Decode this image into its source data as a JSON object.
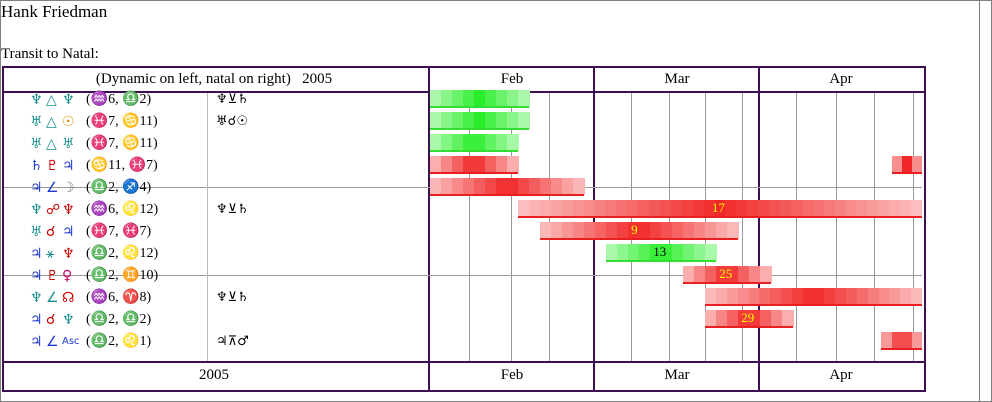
{
  "title": "Hank Friedman",
  "subtitle": "Transit to Natal:",
  "header": {
    "left_caption": "(Dynamic on left, natal on right)",
    "year": "2005",
    "months": [
      "Feb",
      "Mar",
      "Apr"
    ]
  },
  "footer": {
    "year": "2005",
    "months": [
      "Feb",
      "Mar",
      "Apr"
    ]
  },
  "colors": {
    "frame": "#3c1053",
    "green_bar": "#33dd33",
    "red_bar": "#e82020",
    "label_yellow": "#ffff00"
  },
  "rows": [
    {
      "glyphs": [
        "♆",
        "△",
        "♆"
      ],
      "colors": [
        "#1a8f8f",
        "#1a8f8f",
        "#1a8f8f"
      ],
      "signs": "(♒6, ♎2)",
      "natal": "♆⊻♄"
    },
    {
      "glyphs": [
        "♅",
        "△",
        "☉"
      ],
      "colors": [
        "#1a8f8f",
        "#1a8f8f",
        "#d4900a"
      ],
      "signs": "(♓7, ♋11)",
      "natal": "♅☌☉"
    },
    {
      "glyphs": [
        "♅",
        "△",
        "♅"
      ],
      "colors": [
        "#1a8f8f",
        "#1a8f8f",
        "#1a8f8f"
      ],
      "signs": "(♓7, ♋11)",
      "natal": ""
    },
    {
      "glyphs": [
        "♄",
        "♇",
        "♃"
      ],
      "colors": [
        "#1c3ad0",
        "#cc0000",
        "#1c3ad0"
      ],
      "signs": "(♋11, ♓7)",
      "natal": ""
    },
    {
      "glyphs": [
        "♃",
        "∠",
        "☽"
      ],
      "colors": [
        "#1c3ad0",
        "#1c3ad0",
        "#808080"
      ],
      "signs": "(♎2, ♐4)",
      "natal": ""
    },
    {
      "glyphs": [
        "♆",
        "☍",
        "♆"
      ],
      "colors": [
        "#1a8f8f",
        "#cc0000",
        "#cc0000"
      ],
      "signs": "(♒6, ♌12)",
      "natal": "♆⊻♄"
    },
    {
      "glyphs": [
        "♅",
        "☌",
        "♃"
      ],
      "colors": [
        "#1a8f8f",
        "#cc0000",
        "#1c3ad0"
      ],
      "signs": "(♓7, ♓7)",
      "natal": ""
    },
    {
      "glyphs": [
        "♃",
        "⚹",
        "♆"
      ],
      "colors": [
        "#1c3ad0",
        "#1a8f8f",
        "#cc0000"
      ],
      "signs": "(♎2, ♌12)",
      "natal": ""
    },
    {
      "glyphs": [
        "♃",
        "♇",
        "♀"
      ],
      "colors": [
        "#1c3ad0",
        "#cc0000",
        "#cc0066"
      ],
      "signs": "(♎2, ♊10)",
      "natal": ""
    },
    {
      "glyphs": [
        "♆",
        "∠",
        "☊"
      ],
      "colors": [
        "#1a8f8f",
        "#1a8f8f",
        "#cc0000"
      ],
      "signs": "(♒6, ♈8)",
      "natal": "♆⊻♄"
    },
    {
      "glyphs": [
        "♃",
        "☌",
        "♆"
      ],
      "colors": [
        "#1c3ad0",
        "#cc0000",
        "#1a8f8f"
      ],
      "signs": "(♎2, ♎2)",
      "natal": ""
    },
    {
      "glyphs": [
        "♃",
        "∠",
        "Asc"
      ],
      "colors": [
        "#1c3ad0",
        "#1c3ad0",
        "#1c3ad0"
      ],
      "signs": "(♎2, ♌1)",
      "natal": "♃⊼♂"
    }
  ],
  "bars": [
    {
      "row": 0,
      "type": "green",
      "start_day": 0,
      "end_day": 27,
      "label": ""
    },
    {
      "row": 1,
      "type": "green",
      "start_day": 0,
      "end_day": 27,
      "label": ""
    },
    {
      "row": 2,
      "type": "green",
      "start_day": 0,
      "end_day": 24,
      "label": ""
    },
    {
      "row": 3,
      "type": "red",
      "start_day": 0,
      "end_day": 24,
      "label": ""
    },
    {
      "row": 3,
      "type": "red",
      "start_day": 126,
      "end_day": 135,
      "label": ""
    },
    {
      "row": 4,
      "type": "red",
      "start_day": 0,
      "end_day": 42,
      "label": ""
    },
    {
      "row": 5,
      "type": "red",
      "start_day": 24,
      "end_day": 135,
      "label": "17"
    },
    {
      "row": 6,
      "type": "red",
      "start_day": 30,
      "end_day": 84,
      "label": "9"
    },
    {
      "row": 7,
      "type": "green",
      "start_day": 48,
      "end_day": 78,
      "label": "13"
    },
    {
      "row": 8,
      "type": "red",
      "start_day": 69,
      "end_day": 93,
      "label": "25"
    },
    {
      "row": 9,
      "type": "red",
      "start_day": 75,
      "end_day": 135,
      "label": ""
    },
    {
      "row": 10,
      "type": "red",
      "start_day": 75,
      "end_day": 99,
      "label": "29"
    },
    {
      "row": 11,
      "type": "red",
      "start_day": 123,
      "end_day": 135,
      "label": ""
    }
  ]
}
